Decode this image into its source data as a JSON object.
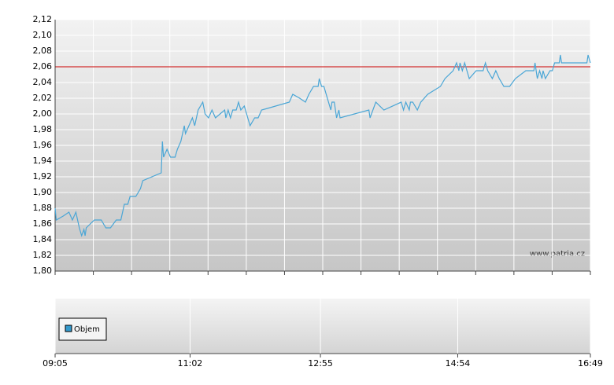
{
  "chart_data": {
    "type": "line",
    "x": [
      "09:05",
      "09:06",
      "09:12",
      "09:17",
      "09:20",
      "09:23",
      "09:26",
      "09:28",
      "09:30",
      "09:31",
      "09:32",
      "09:39",
      "09:45",
      "09:49",
      "09:53",
      "09:58",
      "10:02",
      "10:05",
      "10:08",
      "10:10",
      "10:15",
      "10:19",
      "10:21",
      "10:37",
      "10:38",
      "10:39",
      "10:42",
      "10:45",
      "10:49",
      "10:51",
      "10:54",
      "10:57",
      "10:58",
      "11:01",
      "11:04",
      "11:06",
      "11:09",
      "11:13",
      "11:15",
      "11:18",
      "11:21",
      "11:24",
      "11:28",
      "11:32",
      "11:33",
      "11:35",
      "11:37",
      "11:39",
      "11:42",
      "11:44",
      "11:46",
      "11:49",
      "11:52",
      "11:54",
      "11:58",
      "12:01",
      "12:04",
      "12:09",
      "12:28",
      "12:31",
      "12:37",
      "12:42",
      "12:45",
      "12:49",
      "12:53",
      "12:54",
      "12:56",
      "12:58",
      "13:00",
      "13:04",
      "13:05",
      "13:07",
      "13:09",
      "13:11",
      "13:12",
      "13:37",
      "13:38",
      "13:43",
      "13:50",
      "14:05",
      "14:07",
      "14:09",
      "14:12",
      "14:13",
      "14:15",
      "14:19",
      "14:22",
      "14:28",
      "14:39",
      "14:43",
      "14:50",
      "14:53",
      "14:55",
      "14:56",
      "14:58",
      "15:00",
      "15:04",
      "15:10",
      "15:16",
      "15:18",
      "15:20",
      "15:24",
      "15:27",
      "15:30",
      "15:34",
      "15:39",
      "15:44",
      "15:53",
      "16:00",
      "16:01",
      "16:03",
      "16:05",
      "16:07",
      "16:08",
      "16:10",
      "16:14",
      "16:16",
      "16:18",
      "16:22",
      "16:23",
      "16:24",
      "16:46",
      "16:47",
      "16:49"
    ],
    "series": [
      {
        "color": "#4aa6d6",
        "values": [
          1.88,
          1.865,
          1.87,
          1.875,
          1.865,
          1.875,
          1.855,
          1.845,
          1.853,
          1.845,
          1.855,
          1.865,
          1.865,
          1.855,
          1.855,
          1.865,
          1.865,
          1.885,
          1.885,
          1.895,
          1.895,
          1.905,
          1.915,
          1.925,
          1.965,
          1.945,
          1.955,
          1.945,
          1.945,
          1.955,
          1.965,
          1.985,
          1.975,
          1.985,
          1.995,
          1.985,
          2.005,
          2.015,
          2.0,
          1.995,
          2.005,
          1.995,
          2.0,
          2.005,
          1.995,
          2.005,
          1.995,
          2.005,
          2.005,
          2.015,
          2.005,
          2.01,
          1.995,
          1.985,
          1.995,
          1.995,
          2.005,
          2.007,
          2.015,
          2.025,
          2.02,
          2.015,
          2.025,
          2.035,
          2.035,
          2.045,
          2.035,
          2.035,
          2.025,
          2.005,
          2.015,
          2.015,
          1.995,
          2.005,
          1.995,
          2.005,
          1.995,
          2.015,
          2.005,
          2.015,
          2.005,
          2.015,
          2.005,
          2.015,
          2.015,
          2.005,
          2.015,
          2.025,
          2.035,
          2.045,
          2.055,
          2.065,
          2.055,
          2.065,
          2.055,
          2.065,
          2.045,
          2.055,
          2.055,
          2.065,
          2.055,
          2.045,
          2.055,
          2.045,
          2.035,
          2.035,
          2.045,
          2.055,
          2.055,
          2.065,
          2.045,
          2.055,
          2.045,
          2.055,
          2.045,
          2.055,
          2.055,
          2.065,
          2.065,
          2.075,
          2.065,
          2.065,
          2.075,
          2.065
        ]
      }
    ],
    "xlim": [
      "09:05",
      "16:49"
    ],
    "xticks": [
      "09:05",
      "11:02",
      "12:55",
      "14:54",
      "16:49"
    ],
    "ylim": [
      1.8,
      2.12
    ],
    "yticks": [
      {
        "value": 1.8,
        "label": "1,80"
      },
      {
        "value": 1.82,
        "label": "1,82"
      },
      {
        "value": 1.84,
        "label": "1,84"
      },
      {
        "value": 1.86,
        "label": "1,86"
      },
      {
        "value": 1.88,
        "label": "1,88"
      },
      {
        "value": 1.9,
        "label": "1,90"
      },
      {
        "value": 1.92,
        "label": "1,92"
      },
      {
        "value": 1.94,
        "label": "1,94"
      },
      {
        "value": 1.96,
        "label": "1,96"
      },
      {
        "value": 1.98,
        "label": "1,98"
      },
      {
        "value": 2.0,
        "label": "2,00"
      },
      {
        "value": 2.02,
        "label": "2,02"
      },
      {
        "value": 2.04,
        "label": "2,04"
      },
      {
        "value": 2.06,
        "label": "2,06"
      },
      {
        "value": 2.08,
        "label": "2,08"
      },
      {
        "value": 2.1,
        "label": "2,10"
      },
      {
        "value": 2.12,
        "label": "2,12"
      }
    ],
    "grid": true,
    "reference_line": {
      "value": 2.06,
      "color": "#cc0000"
    },
    "watermark": "www.patria.cz",
    "volume_legend": {
      "name": "Objem",
      "color": "#3399cc"
    }
  }
}
